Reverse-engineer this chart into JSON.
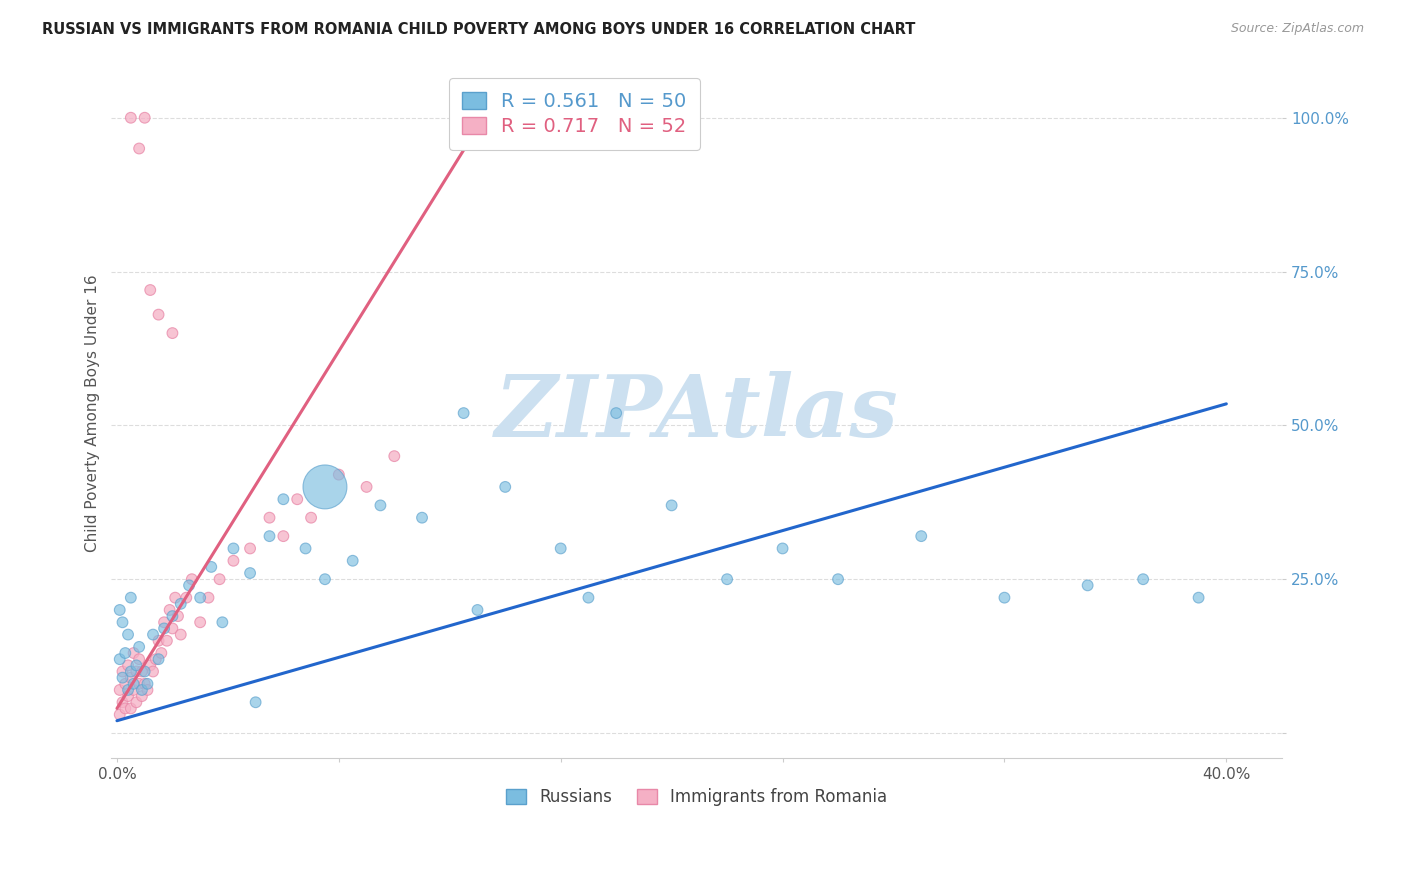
{
  "title": "RUSSIAN VS IMMIGRANTS FROM ROMANIA CHILD POVERTY AMONG BOYS UNDER 16 CORRELATION CHART",
  "source": "Source: ZipAtlas.com",
  "ylabel": "Child Poverty Among Boys Under 16",
  "xlim": [
    -0.002,
    0.42
  ],
  "ylim": [
    -0.04,
    1.08
  ],
  "xticks": [
    0.0,
    0.08,
    0.16,
    0.24,
    0.32,
    0.4
  ],
  "xtick_labels": [
    "0.0%",
    "",
    "",
    "",
    "",
    "40.0%"
  ],
  "yticks": [
    0.0,
    0.25,
    0.5,
    0.75,
    1.0
  ],
  "ytick_labels": [
    "",
    "25.0%",
    "50.0%",
    "75.0%",
    "100.0%"
  ],
  "grid_color": "#dddddd",
  "background_color": "#ffffff",
  "russian_color": "#7bbde0",
  "russian_edge_color": "#5aa0cc",
  "romania_color": "#f5b0c5",
  "romania_edge_color": "#e888a8",
  "russian_R": 0.561,
  "russian_N": 50,
  "romania_R": 0.717,
  "romania_N": 52,
  "watermark": "ZIPAtlas",
  "watermark_color": "#cce0f0",
  "blue_line_x": [
    0.0,
    0.4
  ],
  "blue_line_y": [
    0.02,
    0.535
  ],
  "pink_line_x": [
    0.0,
    0.135
  ],
  "pink_line_y": [
    0.04,
    1.02
  ],
  "russians_x": [
    0.001,
    0.001,
    0.002,
    0.002,
    0.003,
    0.004,
    0.004,
    0.005,
    0.005,
    0.006,
    0.007,
    0.008,
    0.009,
    0.01,
    0.011,
    0.013,
    0.015,
    0.017,
    0.02,
    0.023,
    0.026,
    0.03,
    0.034,
    0.038,
    0.042,
    0.048,
    0.055,
    0.06,
    0.068,
    0.075,
    0.085,
    0.095,
    0.11,
    0.125,
    0.14,
    0.16,
    0.18,
    0.2,
    0.22,
    0.24,
    0.26,
    0.29,
    0.32,
    0.35,
    0.37,
    0.39,
    0.17,
    0.13,
    0.075,
    0.05
  ],
  "russians_y": [
    0.12,
    0.2,
    0.09,
    0.18,
    0.13,
    0.07,
    0.16,
    0.1,
    0.22,
    0.08,
    0.11,
    0.14,
    0.07,
    0.1,
    0.08,
    0.16,
    0.12,
    0.17,
    0.19,
    0.21,
    0.24,
    0.22,
    0.27,
    0.18,
    0.3,
    0.26,
    0.32,
    0.38,
    0.3,
    0.25,
    0.28,
    0.37,
    0.35,
    0.52,
    0.4,
    0.3,
    0.52,
    0.37,
    0.25,
    0.3,
    0.25,
    0.32,
    0.22,
    0.24,
    0.25,
    0.22,
    0.22,
    0.2,
    0.4,
    0.05
  ],
  "russians_size": [
    60,
    60,
    60,
    60,
    60,
    60,
    60,
    60,
    60,
    60,
    60,
    60,
    60,
    60,
    60,
    60,
    60,
    60,
    60,
    60,
    60,
    60,
    60,
    60,
    60,
    60,
    60,
    60,
    60,
    60,
    60,
    60,
    60,
    60,
    60,
    60,
    60,
    60,
    60,
    60,
    60,
    60,
    60,
    60,
    60,
    60,
    60,
    60,
    1000,
    60
  ],
  "romania_x": [
    0.001,
    0.001,
    0.002,
    0.002,
    0.003,
    0.003,
    0.004,
    0.004,
    0.005,
    0.005,
    0.006,
    0.006,
    0.007,
    0.007,
    0.008,
    0.008,
    0.009,
    0.009,
    0.01,
    0.011,
    0.012,
    0.013,
    0.014,
    0.015,
    0.016,
    0.017,
    0.018,
    0.019,
    0.02,
    0.021,
    0.022,
    0.023,
    0.025,
    0.027,
    0.03,
    0.033,
    0.037,
    0.042,
    0.048,
    0.055,
    0.06,
    0.065,
    0.07,
    0.08,
    0.09,
    0.1,
    0.02,
    0.015,
    0.012,
    0.01,
    0.008,
    0.005
  ],
  "romania_y": [
    0.03,
    0.07,
    0.05,
    0.1,
    0.04,
    0.08,
    0.06,
    0.11,
    0.04,
    0.09,
    0.07,
    0.13,
    0.05,
    0.1,
    0.08,
    0.12,
    0.06,
    0.1,
    0.08,
    0.07,
    0.11,
    0.1,
    0.12,
    0.15,
    0.13,
    0.18,
    0.15,
    0.2,
    0.17,
    0.22,
    0.19,
    0.16,
    0.22,
    0.25,
    0.18,
    0.22,
    0.25,
    0.28,
    0.3,
    0.35,
    0.32,
    0.38,
    0.35,
    0.42,
    0.4,
    0.45,
    0.65,
    0.68,
    0.72,
    1.0,
    0.95,
    1.0
  ],
  "romania_size": [
    60,
    60,
    60,
    60,
    60,
    60,
    60,
    60,
    60,
    60,
    60,
    60,
    60,
    60,
    60,
    60,
    60,
    60,
    60,
    60,
    60,
    60,
    60,
    60,
    60,
    60,
    60,
    60,
    60,
    60,
    60,
    60,
    60,
    60,
    60,
    60,
    60,
    60,
    60,
    60,
    60,
    60,
    60,
    60,
    60,
    60,
    60,
    60,
    60,
    60,
    60,
    60
  ]
}
